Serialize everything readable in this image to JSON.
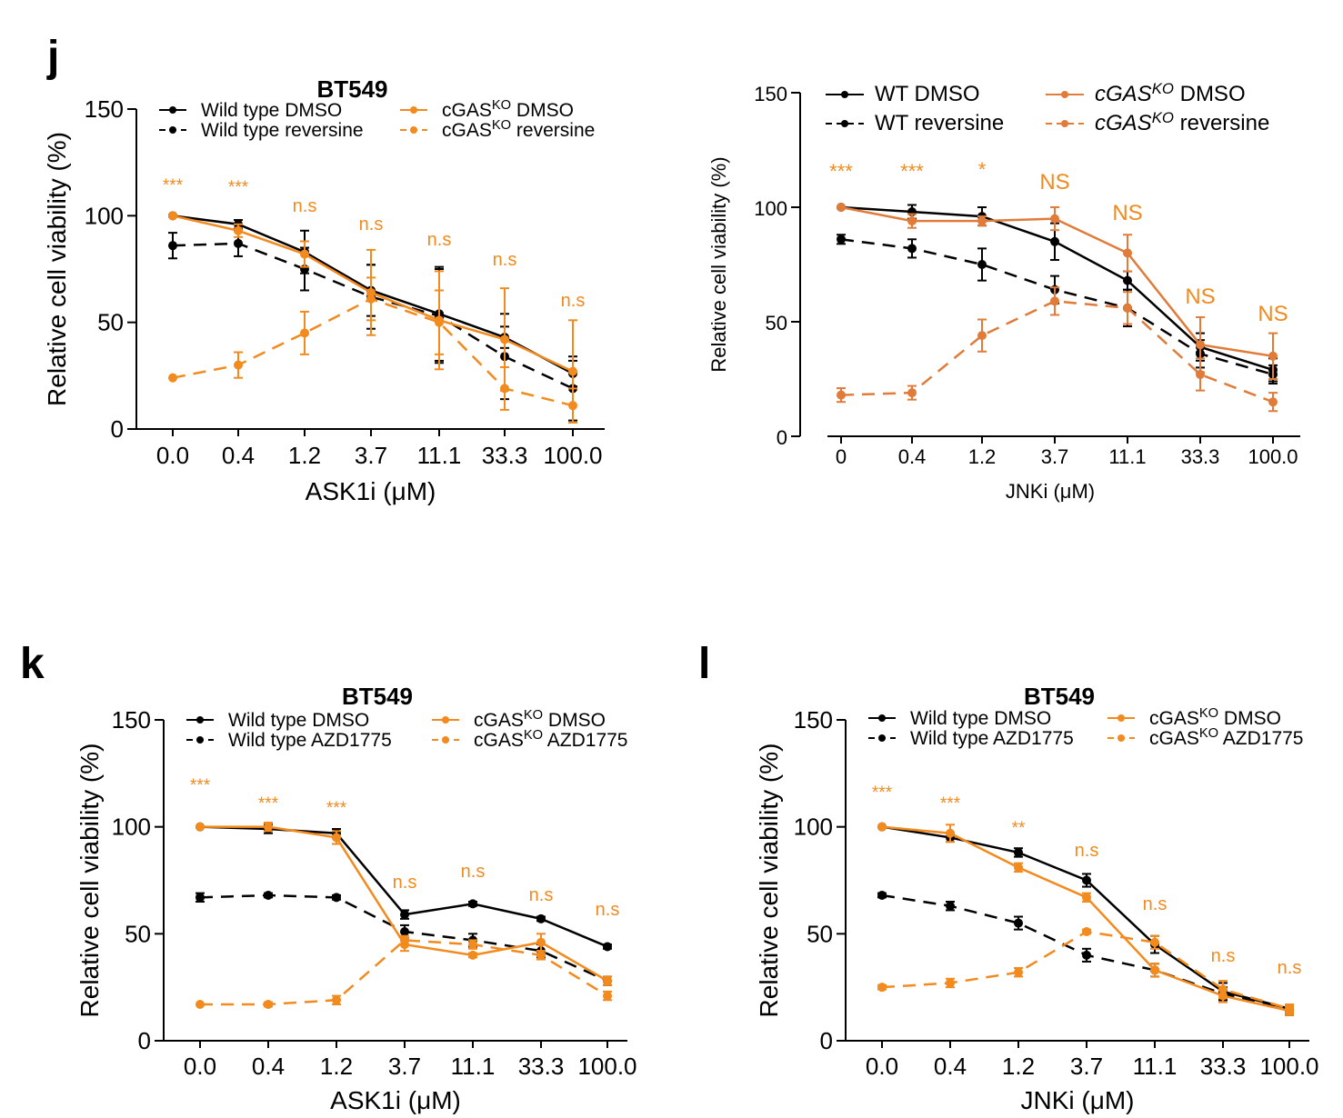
{
  "chart_data": [
    {
      "panel": "j",
      "type": "line",
      "title": "BT549",
      "xlabel": "ASK1i (μM)",
      "ylabel": "Relative cell viability (%)",
      "categories": [
        "0.0",
        "0.4",
        "1.2",
        "3.7",
        "11.1",
        "33.3",
        "100.0"
      ],
      "ylim": [
        0,
        150
      ],
      "yticks": [
        "0",
        "50",
        "100",
        "150"
      ],
      "series": [
        {
          "name": "Wild type DMSO",
          "legend": [
            "Wild type DMSO"
          ],
          "color": "#000000",
          "dashed": false,
          "values": [
            100,
            96,
            83,
            65,
            54,
            43,
            26
          ],
          "errors": [
            0,
            2,
            10,
            12,
            22,
            5,
            6
          ]
        },
        {
          "name": "Wild type reversine",
          "legend": [
            "Wild type reversine"
          ],
          "color": "#000000",
          "dashed": true,
          "values": [
            86,
            87,
            75,
            62,
            53,
            34,
            19
          ],
          "errors": [
            6,
            6,
            10,
            15,
            22,
            20,
            15
          ]
        },
        {
          "name": "cGASKO DMSO",
          "legend": [
            "cGAS",
            "KO",
            " DMSO"
          ],
          "color": "#f28a1e",
          "dashed": false,
          "values": [
            100,
            93,
            82,
            64,
            51,
            42,
            27
          ],
          "errors": [
            0,
            3,
            6,
            20,
            23,
            24,
            24
          ]
        },
        {
          "name": "cGASKO reversine",
          "legend": [
            "cGAS",
            "KO",
            " reversine"
          ],
          "color": "#f28a1e",
          "dashed": true,
          "values": [
            24,
            30,
            45,
            61,
            50,
            19,
            11
          ],
          "errors": [
            0,
            6,
            10,
            10,
            15,
            10,
            8
          ]
        }
      ],
      "annotations": [
        "***",
        "***",
        "n.s",
        "n.s",
        "n.s",
        "n.s",
        "n.s"
      ]
    },
    {
      "panel": "",
      "type": "line",
      "title": "",
      "xlabel": "JNKi (μM)",
      "ylabel": "Relative cell viability (%)",
      "categories": [
        "0",
        "0.4",
        "1.2",
        "3.7",
        "11.1",
        "33.3",
        "100.0"
      ],
      "ylim": [
        0,
        150
      ],
      "yticks": [
        "0",
        "50",
        "100",
        "150"
      ],
      "series": [
        {
          "name": "WT DMSO",
          "legend": [
            "WT DMSO"
          ],
          "color": "#000000",
          "dashed": false,
          "values": [
            100,
            98,
            96,
            85,
            68,
            39,
            29
          ],
          "errors": [
            0,
            3,
            4,
            8,
            4,
            6,
            5
          ]
        },
        {
          "name": "WT reversine",
          "legend": [
            "WT reversine"
          ],
          "color": "#000000",
          "dashed": true,
          "values": [
            86,
            82,
            75,
            64,
            56,
            36,
            27
          ],
          "errors": [
            2,
            4,
            7,
            6,
            8,
            6,
            4
          ]
        },
        {
          "name": "cGASKO DMSO",
          "legend": [
            "cGAS",
            "KO",
            " DMSO"
          ],
          "color": "#e07b39",
          "dashed": false,
          "values": [
            100,
            94,
            94,
            95,
            80,
            40,
            35
          ],
          "errors": [
            0,
            3,
            2,
            5,
            8,
            12,
            10
          ]
        },
        {
          "name": "cGASKO reversine",
          "legend": [
            "cGAS",
            "KO",
            " reversine"
          ],
          "color": "#e07b39",
          "dashed": true,
          "values": [
            18,
            19,
            44,
            59,
            56,
            27,
            15
          ],
          "errors": [
            3,
            3,
            7,
            6,
            7,
            7,
            4
          ]
        }
      ],
      "annotations": [
        "***",
        "***",
        "*",
        "NS",
        "NS",
        "NS",
        "NS"
      ]
    },
    {
      "panel": "k",
      "type": "line",
      "title": "BT549",
      "xlabel": "ASK1i (μM)",
      "ylabel": "Relative cell viability (%)",
      "categories": [
        "0.0",
        "0.4",
        "1.2",
        "3.7",
        "11.1",
        "33.3",
        "100.0"
      ],
      "ylim": [
        0,
        150
      ],
      "yticks": [
        "0",
        "50",
        "100",
        "150"
      ],
      "series": [
        {
          "name": "Wild type DMSO",
          "legend": [
            "Wild type DMSO"
          ],
          "color": "#000000",
          "dashed": false,
          "values": [
            100,
            99,
            97,
            59,
            64,
            57,
            44
          ],
          "errors": [
            0,
            2,
            2,
            2,
            1,
            1,
            1
          ]
        },
        {
          "name": "Wild type AZD1775",
          "legend": [
            "Wild type AZD1775"
          ],
          "color": "#000000",
          "dashed": true,
          "values": [
            67,
            68,
            67,
            51,
            47,
            42,
            28
          ],
          "errors": [
            2,
            1,
            1,
            3,
            3,
            3,
            2
          ]
        },
        {
          "name": "cGASKO DMSO",
          "legend": [
            "cGAS",
            "KO",
            " DMSO"
          ],
          "color": "#f28a1e",
          "dashed": false,
          "values": [
            100,
            100,
            95,
            45,
            40,
            46,
            28
          ],
          "errors": [
            0,
            2,
            3,
            3,
            1,
            4,
            2
          ]
        },
        {
          "name": "cGASKO AZD1775",
          "legend": [
            "cGAS",
            "KO",
            " AZD1775"
          ],
          "color": "#f28a1e",
          "dashed": true,
          "values": [
            17,
            17,
            19,
            47,
            45,
            40,
            21
          ],
          "errors": [
            0,
            1,
            2,
            2,
            2,
            2,
            2
          ]
        }
      ],
      "annotations": [
        "***",
        "***",
        "***",
        "n.s",
        "n.s",
        "n.s",
        "n.s"
      ]
    },
    {
      "panel": "l",
      "type": "line",
      "title": "BT549",
      "xlabel": "JNKi (μM)",
      "ylabel": "Relative cell viability (%)",
      "categories": [
        "0.0",
        "0.4",
        "1.2",
        "3.7",
        "11.1",
        "33.3",
        "100.0"
      ],
      "ylim": [
        0,
        150
      ],
      "yticks": [
        "0",
        "50",
        "100",
        "150"
      ],
      "series": [
        {
          "name": "Wild type DMSO",
          "legend": [
            "Wild type DMSO"
          ],
          "color": "#000000",
          "dashed": false,
          "values": [
            100,
            95,
            88,
            75,
            45,
            23,
            15
          ],
          "errors": [
            0,
            2,
            2,
            3,
            4,
            4,
            2
          ]
        },
        {
          "name": "Wild type AZD1775",
          "legend": [
            "Wild type AZD1775"
          ],
          "color": "#000000",
          "dashed": true,
          "values": [
            68,
            63,
            55,
            40,
            33,
            22,
            14
          ],
          "errors": [
            1,
            2,
            3,
            3,
            3,
            3,
            2
          ]
        },
        {
          "name": "cGASKO DMSO",
          "legend": [
            "cGAS",
            "KO",
            " DMSO"
          ],
          "color": "#f28a1e",
          "dashed": false,
          "values": [
            100,
            97,
            81,
            67,
            33,
            21,
            14
          ],
          "errors": [
            0,
            4,
            2,
            2,
            3,
            3,
            2
          ]
        },
        {
          "name": "cGASKO AZD1775",
          "legend": [
            "cGAS",
            "KO",
            " AZD1775"
          ],
          "color": "#f28a1e",
          "dashed": true,
          "values": [
            25,
            27,
            32,
            51,
            46,
            24,
            15
          ],
          "errors": [
            1,
            2,
            2,
            1,
            3,
            4,
            2
          ]
        }
      ],
      "annotations": [
        "***",
        "***",
        "**",
        "n.s",
        "n.s",
        "n.s",
        "n.s"
      ]
    }
  ]
}
